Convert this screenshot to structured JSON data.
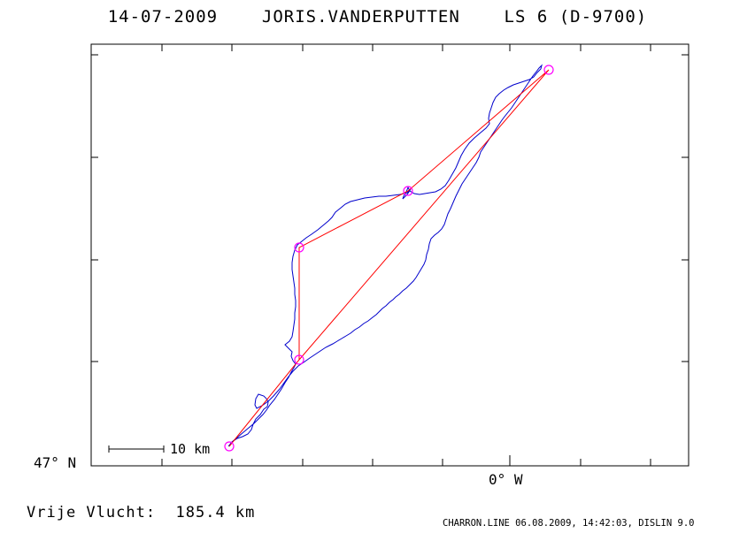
{
  "header": {
    "title": "14-07-2009    JORIS.VANDERPUTTEN    LS 6 (D-9700)"
  },
  "axes": {
    "lat_label": "47° N",
    "lon_label": "0° W"
  },
  "scale_bar": {
    "label": "10 km"
  },
  "flight": {
    "distance_label": "Vrije Vlucht:",
    "distance_value": "185.4 km",
    "distance_text": "Vrije Vlucht:  185.4 km"
  },
  "footer": {
    "text": "CHARRON.LINE 06.08.2009, 14:42:03, DISLIN 9.0"
  },
  "colors": {
    "track": "#0000cc",
    "task_lines": "#ff0000",
    "turnpoints": "#ff00ff",
    "frame": "#000000"
  }
}
